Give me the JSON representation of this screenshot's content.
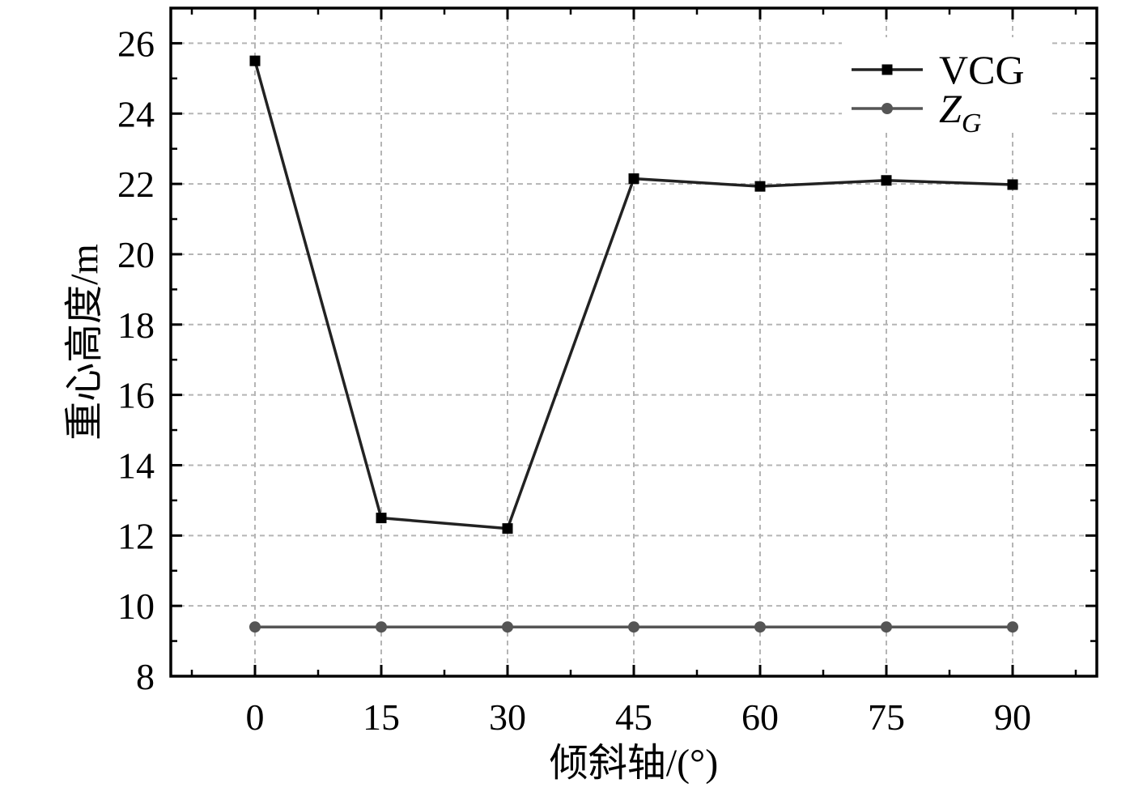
{
  "chart_data": {
    "type": "line",
    "title": "",
    "xlabel": "倾斜轴/(°)",
    "ylabel": "重心高度/m",
    "x": [
      0,
      15,
      30,
      45,
      60,
      75,
      90
    ],
    "xlim": [
      -10,
      100
    ],
    "ylim": [
      8,
      27
    ],
    "xticks": [
      "0",
      "15",
      "30",
      "45",
      "60",
      "75",
      "90"
    ],
    "yticks": [
      "8",
      "10",
      "12",
      "14",
      "16",
      "18",
      "20",
      "22",
      "24",
      "26"
    ],
    "grid": true,
    "legend_position": "top-right",
    "series": [
      {
        "name": "VCG",
        "name_sub": "",
        "marker": "square",
        "color": "#222222",
        "values": [
          25.5,
          12.5,
          12.2,
          22.15,
          21.93,
          22.1,
          21.98
        ]
      },
      {
        "name": "Z",
        "name_sub": "G",
        "marker": "circle",
        "color": "#555555",
        "values": [
          9.4,
          9.4,
          9.4,
          9.4,
          9.4,
          9.4,
          9.4
        ]
      }
    ]
  }
}
